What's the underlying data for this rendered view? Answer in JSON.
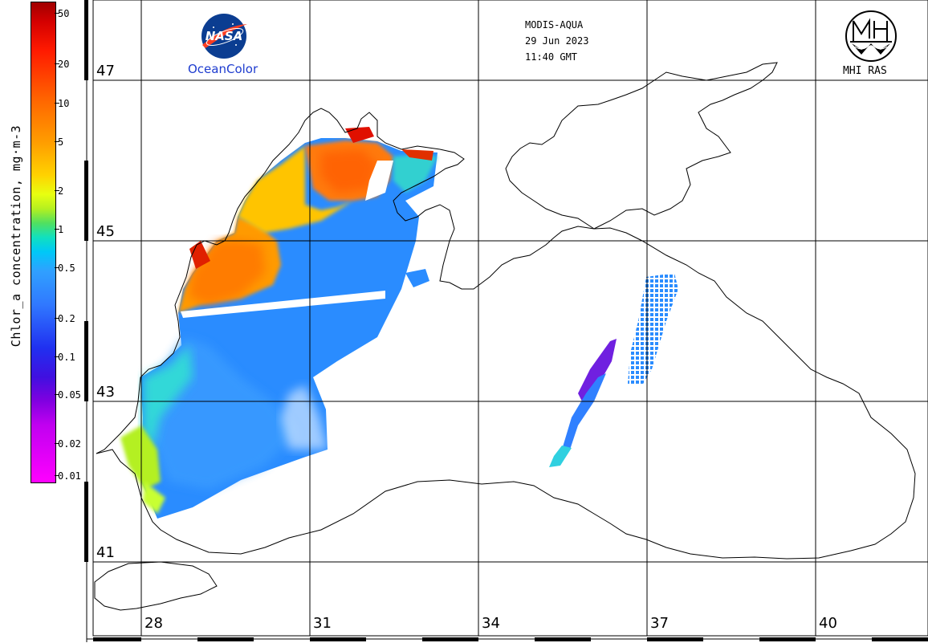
{
  "header": {
    "satellite": "MODIS-AQUA",
    "date": "29 Jun 2023",
    "time": "11:40 GMT"
  },
  "logos": {
    "nasa_text": "NASA",
    "oceancolor_text": "OceanColor",
    "mhi_text": "MHI RAS"
  },
  "colorbar": {
    "title": "Chlor_a concentration, mg·m-3",
    "ticks": [
      "50",
      "20",
      "10",
      "5",
      "2",
      "1",
      "0.5",
      "0.2",
      "0.1",
      "0.05",
      "0.02",
      "0.01"
    ]
  },
  "grid": {
    "lat_labels": [
      "47",
      "45",
      "43",
      "41"
    ],
    "lon_labels": [
      "28",
      "31",
      "34",
      "37",
      "40"
    ]
  },
  "colors": {
    "high": "#d40000",
    "orange": "#ff8c00",
    "yellow": "#e8ff10",
    "cyan": "#10e0e0",
    "blue": "#2a8cff",
    "low": "#ff00ff"
  }
}
